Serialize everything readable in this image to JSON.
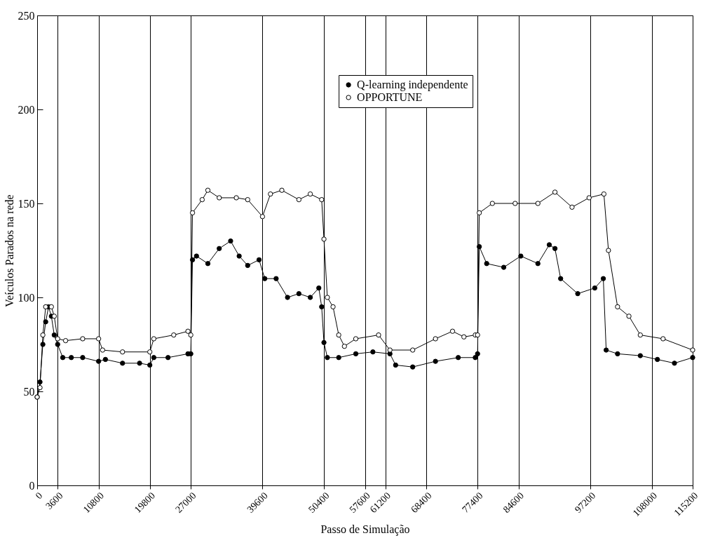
{
  "chart_data": {
    "type": "line",
    "xlabel": "Passo de Simulação",
    "ylabel": "Veículos Parados na rede",
    "xlim": [
      0,
      115200
    ],
    "xticks": [
      0,
      3600,
      10800,
      19800,
      27000,
      39600,
      50400,
      57600,
      61200,
      68400,
      77400,
      84600,
      97200,
      108000,
      115200
    ],
    "ylim": [
      0,
      250
    ],
    "yticks": [
      0,
      50,
      100,
      150,
      200,
      250
    ],
    "grid": "x",
    "legend": "top right",
    "marker": "circle",
    "line_style": "solid",
    "series": [
      {
        "name": "Q-learning independente",
        "color": "#000000",
        "x": [
          0,
          500,
          1000,
          1500,
          2000,
          2500,
          3000,
          3600,
          4500,
          6000,
          8000,
          10800,
          12000,
          15000,
          18000,
          19800,
          20500,
          23000,
          26500,
          27000,
          27300,
          28000,
          30000,
          32000,
          34000,
          35500,
          37000,
          39000,
          40000,
          42000,
          44000,
          46000,
          48000,
          49500,
          50000,
          50400,
          51000,
          53000,
          56000,
          59000,
          62000,
          63000,
          66000,
          70000,
          74000,
          77000,
          77400,
          77700,
          79000,
          82000,
          85000,
          88000,
          90000,
          91000,
          92000,
          95000,
          98000,
          99500,
          100000,
          102000,
          106000,
          109000,
          112000,
          115200
        ],
        "values": [
          47,
          55,
          75,
          87,
          95,
          90,
          80,
          75,
          68,
          68,
          68,
          66,
          67,
          65,
          65,
          64,
          68,
          68,
          70,
          70,
          120,
          122,
          118,
          126,
          130,
          122,
          117,
          120,
          110,
          110,
          100,
          102,
          100,
          105,
          95,
          76,
          68,
          68,
          70,
          71,
          70,
          64,
          63,
          66,
          68,
          68,
          70,
          127,
          118,
          116,
          122,
          118,
          128,
          126,
          110,
          102,
          105,
          110,
          72,
          70,
          69,
          67,
          65,
          68
        ]
      },
      {
        "name": "OPPORTUNE",
        "color": "#000000",
        "x": [
          0,
          500,
          1000,
          1500,
          2500,
          3000,
          3600,
          5000,
          8000,
          10800,
          11500,
          15000,
          19800,
          20500,
          24000,
          26500,
          27000,
          27300,
          29000,
          30000,
          32000,
          35000,
          37000,
          39600,
          41000,
          43000,
          46000,
          48000,
          50000,
          50400,
          51000,
          52000,
          53000,
          54000,
          56000,
          60000,
          62000,
          66000,
          70000,
          73000,
          75000,
          77000,
          77400,
          77700,
          80000,
          84000,
          88000,
          91000,
          94000,
          97000,
          99600,
          100400,
          102000,
          104000,
          106000,
          110000,
          115200
        ],
        "values": [
          47,
          52,
          80,
          95,
          95,
          90,
          78,
          77,
          78,
          78,
          72,
          71,
          71,
          78,
          80,
          82,
          80,
          145,
          152,
          157,
          153,
          153,
          152,
          143,
          155,
          157,
          152,
          155,
          152,
          131,
          100,
          95,
          80,
          74,
          78,
          80,
          72,
          72,
          78,
          82,
          79,
          80,
          80,
          145,
          150,
          150,
          150,
          156,
          148,
          153,
          155,
          125,
          95,
          90,
          80,
          78,
          72
        ]
      }
    ]
  }
}
